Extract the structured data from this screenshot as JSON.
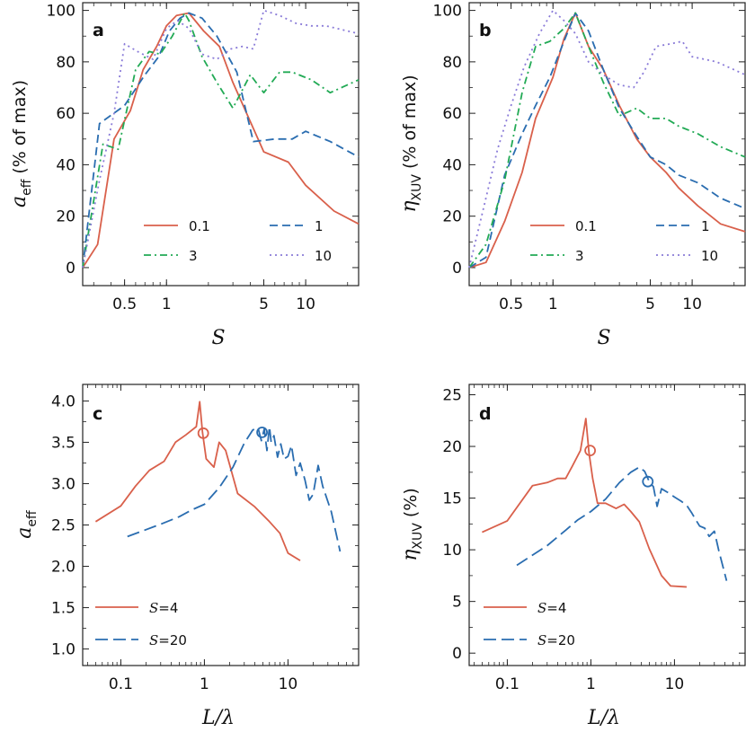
{
  "colors": {
    "red": "#d9604b",
    "blue": "#2a6db0",
    "green": "#22aa55",
    "purple": "#8a7bd8"
  },
  "panels": {
    "a": {
      "label": "a",
      "ylabel_main": "a",
      "ylabel_sub": "eff",
      "ylabel_tail": "(% of max)",
      "xlabel": "S"
    },
    "b": {
      "label": "b",
      "ylabel_main": "η",
      "ylabel_sub": "XUV",
      "ylabel_tail": "(% of max)",
      "xlabel": "S"
    },
    "c": {
      "label": "c",
      "ylabel_main": "a",
      "ylabel_sub": "eff",
      "ylabel_tail": "",
      "xlabel": "L/λ"
    },
    "d": {
      "label": "d",
      "ylabel_main": "η",
      "ylabel_sub": "XUV",
      "ylabel_tail": "(%)",
      "xlabel": "L/λ"
    }
  },
  "chart_data": [
    {
      "id": "a",
      "type": "line",
      "xscale": "log",
      "xlim": [
        0.25,
        24
      ],
      "ylim": [
        -7,
        103
      ],
      "xticks": [
        0.5,
        1,
        5,
        10
      ],
      "xtick_labels": [
        "0.5",
        "1",
        "5",
        "10"
      ],
      "yticks": [
        0,
        20,
        40,
        60,
        80,
        100
      ],
      "ytick_labels": [
        "0",
        "20",
        "40",
        "60",
        "80",
        "100"
      ],
      "legend": {
        "placement": "lower-center",
        "columns": 2
      },
      "series": [
        {
          "name": "0.1",
          "color": "red",
          "dash": "solid",
          "x": [
            0.25,
            0.32,
            0.42,
            0.55,
            0.68,
            0.85,
            1.0,
            1.18,
            1.45,
            1.85,
            2.4,
            3.0,
            5.0,
            7.5,
            10.0,
            16.0,
            24.0
          ],
          "y": [
            0,
            9,
            50,
            61,
            77,
            86,
            94,
            98,
            99,
            92,
            86,
            72,
            45,
            41,
            32,
            22,
            17
          ]
        },
        {
          "name": "1",
          "color": "blue",
          "dash": "dashed",
          "x": [
            0.25,
            0.33,
            0.5,
            0.7,
            0.88,
            1.05,
            1.25,
            1.45,
            1.8,
            2.3,
            3.2,
            4.2,
            6.0,
            8.0,
            10.0,
            15.0,
            24.0
          ],
          "y": [
            0,
            56,
            63,
            75,
            82,
            92,
            97,
            99,
            97,
            90,
            76,
            49,
            50,
            50,
            53,
            49,
            43
          ]
        },
        {
          "name": "3",
          "color": "green",
          "dash": "dashdot",
          "x": [
            0.25,
            0.35,
            0.45,
            0.6,
            0.75,
            0.9,
            1.1,
            1.35,
            1.45,
            1.8,
            2.3,
            3.0,
            4.0,
            5.0,
            6.5,
            8.0,
            11.0,
            15.0,
            24.0
          ],
          "y": [
            0,
            48,
            46,
            77,
            84,
            83,
            90,
            99,
            96,
            82,
            72,
            62,
            75,
            68,
            76,
            76,
            73,
            68,
            73
          ]
        },
        {
          "name": "10",
          "color": "purple",
          "dash": "dotted",
          "x": [
            0.25,
            0.33,
            0.42,
            0.5,
            0.62,
            0.8,
            1.0,
            1.2,
            1.45,
            1.8,
            2.3,
            2.9,
            3.5,
            4.2,
            5.0,
            6.5,
            8.5,
            11.0,
            14.0,
            24.0
          ],
          "y": [
            0,
            34,
            60,
            87,
            84,
            81,
            93,
            96,
            93,
            83,
            81,
            85,
            86,
            85,
            100,
            98,
            95,
            94,
            94,
            91
          ]
        }
      ]
    },
    {
      "id": "b",
      "type": "line",
      "xscale": "log",
      "xlim": [
        0.25,
        24
      ],
      "ylim": [
        -7,
        103
      ],
      "xticks": [
        0.5,
        1,
        5,
        10
      ],
      "xtick_labels": [
        "0.5",
        "1",
        "5",
        "10"
      ],
      "yticks": [
        0,
        20,
        40,
        60,
        80,
        100
      ],
      "ytick_labels": [
        "0",
        "20",
        "40",
        "60",
        "80",
        "100"
      ],
      "legend": {
        "placement": "lower-center",
        "columns": 2
      },
      "series": [
        {
          "name": "0.1",
          "color": "red",
          "dash": "solid",
          "x": [
            0.25,
            0.33,
            0.45,
            0.6,
            0.75,
            1.0,
            1.2,
            1.45,
            1.8,
            2.3,
            3.0,
            4.0,
            5.0,
            6.5,
            8.0,
            11.0,
            16.0,
            24.0
          ],
          "y": [
            0,
            2,
            18,
            37,
            58,
            74,
            89,
            99,
            86,
            77,
            63,
            50,
            43,
            37,
            31,
            24,
            17,
            14
          ]
        },
        {
          "name": "1",
          "color": "blue",
          "dash": "dashed",
          "x": [
            0.25,
            0.33,
            0.45,
            0.6,
            0.75,
            0.95,
            1.2,
            1.45,
            1.8,
            2.3,
            3.0,
            4.0,
            5.0,
            6.5,
            8.0,
            11.0,
            16.0,
            24.0
          ],
          "y": [
            0,
            4,
            36,
            52,
            63,
            74,
            88,
            99,
            92,
            77,
            62,
            51,
            43,
            40,
            36,
            33,
            27,
            23
          ]
        },
        {
          "name": "3",
          "color": "green",
          "dash": "dashdot",
          "x": [
            0.25,
            0.33,
            0.45,
            0.6,
            0.75,
            0.95,
            1.2,
            1.45,
            1.8,
            2.3,
            3.0,
            4.0,
            5.0,
            6.5,
            8.0,
            11.0,
            16.0,
            24.0
          ],
          "y": [
            0,
            9,
            34,
            68,
            86,
            88,
            93,
            99,
            86,
            72,
            59,
            62,
            58,
            58,
            55,
            52,
            47,
            43
          ]
        },
        {
          "name": "10",
          "color": "purple",
          "dash": "dotted",
          "x": [
            0.25,
            0.32,
            0.4,
            0.5,
            0.62,
            0.8,
            1.0,
            1.2,
            1.45,
            1.8,
            2.3,
            3.0,
            3.8,
            4.5,
            5.5,
            7.0,
            8.5,
            10.0,
            15.0,
            24.0
          ],
          "y": [
            0,
            24,
            46,
            63,
            78,
            91,
            100,
            96,
            91,
            80,
            75,
            71,
            70,
            76,
            86,
            87,
            88,
            82,
            80,
            75
          ]
        }
      ]
    },
    {
      "id": "c",
      "type": "line",
      "xscale": "log",
      "xlim": [
        0.035,
        70
      ],
      "ylim": [
        0.8,
        4.2
      ],
      "xticks": [
        0.1,
        1,
        10
      ],
      "xtick_labels": [
        "0.1",
        "1",
        "10"
      ],
      "yticks": [
        1.0,
        1.5,
        2.0,
        2.5,
        3.0,
        3.5,
        4.0
      ],
      "ytick_labels": [
        "1.0",
        "1.5",
        "2.0",
        "2.5",
        "3.0",
        "3.5",
        "4.0"
      ],
      "legend": {
        "placement": "lower-left",
        "columns": 1
      },
      "series": [
        {
          "name": "S=4",
          "color": "red",
          "dash": "solid",
          "x": [
            0.05,
            0.1,
            0.15,
            0.22,
            0.33,
            0.45,
            0.6,
            0.8,
            0.88,
            0.95,
            1.05,
            1.3,
            1.5,
            1.8,
            2.5,
            4.0,
            6.0,
            8.0,
            10.0,
            14.0
          ],
          "y": [
            2.54,
            2.73,
            2.97,
            3.16,
            3.27,
            3.5,
            3.59,
            3.69,
            3.99,
            3.62,
            3.3,
            3.2,
            3.5,
            3.4,
            2.88,
            2.72,
            2.54,
            2.4,
            2.16,
            2.07
          ],
          "marker": {
            "x": 0.97,
            "y": 3.61
          }
        },
        {
          "name": "S=20",
          "color": "blue",
          "dash": "longdash",
          "x": [
            0.12,
            0.3,
            0.5,
            0.7,
            1.0,
            1.5,
            2.2,
            3.0,
            3.8,
            4.4,
            4.8,
            5.2,
            5.6,
            6.0,
            6.3,
            6.8,
            7.5,
            8.2,
            9.0,
            10.0,
            11.0,
            12.5,
            14.0,
            16.0,
            18.0,
            20.0,
            23.0,
            26.0,
            33.0,
            42.0
          ],
          "y": [
            2.36,
            2.51,
            2.6,
            2.68,
            2.75,
            2.95,
            3.2,
            3.49,
            3.65,
            3.67,
            3.52,
            3.66,
            3.4,
            3.69,
            3.5,
            3.58,
            3.32,
            3.48,
            3.3,
            3.33,
            3.46,
            3.1,
            3.25,
            3.04,
            2.8,
            2.87,
            3.22,
            2.97,
            2.66,
            2.18
          ],
          "marker": {
            "x": 4.9,
            "y": 3.62
          }
        }
      ]
    },
    {
      "id": "d",
      "type": "line",
      "xscale": "log",
      "xlim": [
        0.035,
        70
      ],
      "ylim": [
        -1.2,
        26
      ],
      "xticks": [
        0.1,
        1,
        10
      ],
      "xtick_labels": [
        "0.1",
        "1",
        "10"
      ],
      "yticks": [
        0,
        5,
        10,
        15,
        20,
        25
      ],
      "ytick_labels": [
        "0",
        "5",
        "10",
        "15",
        "20",
        "25"
      ],
      "legend": {
        "placement": "lower-left",
        "columns": 1
      },
      "series": [
        {
          "name": "S=4",
          "color": "red",
          "dash": "solid",
          "x": [
            0.05,
            0.1,
            0.2,
            0.3,
            0.4,
            0.5,
            0.6,
            0.75,
            0.87,
            0.95,
            1.05,
            1.2,
            1.5,
            2.0,
            2.5,
            3.0,
            3.8,
            5.0,
            7.0,
            9.0,
            14.0
          ],
          "y": [
            11.7,
            12.8,
            16.2,
            16.5,
            16.9,
            16.9,
            18.1,
            19.6,
            22.7,
            19.4,
            16.9,
            14.5,
            14.5,
            14.0,
            14.4,
            13.7,
            12.7,
            10.1,
            7.5,
            6.5,
            6.4
          ],
          "marker": {
            "x": 0.98,
            "y": 19.6
          }
        },
        {
          "name": "S=20",
          "color": "blue",
          "dash": "longdash",
          "x": [
            0.13,
            0.3,
            0.5,
            0.7,
            1.0,
            1.5,
            2.2,
            3.0,
            3.8,
            4.4,
            5.0,
            5.6,
            6.2,
            7.0,
            8.5,
            10.0,
            12.0,
            14.0,
            16.0,
            18.0,
            20.0,
            23.0,
            26.0,
            30.0,
            34.0,
            42.0
          ],
          "y": [
            8.5,
            10.4,
            11.9,
            12.9,
            13.7,
            14.9,
            16.5,
            17.5,
            18.0,
            17.6,
            16.6,
            16.1,
            14.2,
            15.9,
            15.5,
            15.1,
            14.7,
            14.3,
            13.6,
            12.9,
            12.3,
            12.1,
            11.3,
            11.8,
            9.9,
            7.0
          ],
          "marker": {
            "x": 4.8,
            "y": 16.6
          }
        }
      ]
    }
  ]
}
